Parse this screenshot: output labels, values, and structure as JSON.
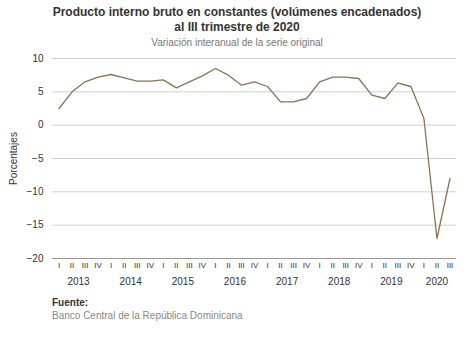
{
  "chart_data": {
    "type": "line",
    "title": "Producto interno bruto en constantes (volúmenes encadenados)\nal III trimestre de 2020",
    "subtitle": "Variación interanual de la serie original",
    "ylabel": "Porcentajes",
    "source_label": "Fuente:",
    "source": "Banco Central de la República Dominicana",
    "categories": [
      "I",
      "II",
      "III",
      "IV",
      "I",
      "II",
      "III",
      "IV",
      "I",
      "II",
      "III",
      "IV",
      "I",
      "II",
      "III",
      "IV",
      "I",
      "II",
      "III",
      "IV",
      "I",
      "II",
      "III",
      "IV",
      "I",
      "II",
      "III",
      "IV",
      "I",
      "II",
      "III"
    ],
    "values": [
      2.5,
      5.0,
      6.5,
      7.2,
      7.6,
      7.1,
      6.6,
      6.6,
      6.8,
      5.6,
      6.5,
      7.4,
      8.5,
      7.5,
      6.0,
      6.5,
      5.8,
      3.5,
      3.5,
      4.0,
      6.5,
      7.2,
      7.2,
      7.0,
      4.5,
      4.0,
      6.3,
      5.8,
      1.0,
      -17.0,
      -8.0
    ],
    "x_groups": [
      {
        "label": "2013",
        "first": 0,
        "last": 3
      },
      {
        "label": "2014",
        "first": 4,
        "last": 7
      },
      {
        "label": "2015",
        "first": 8,
        "last": 11
      },
      {
        "label": "2016",
        "first": 12,
        "last": 15
      },
      {
        "label": "2017",
        "first": 16,
        "last": 19
      },
      {
        "label": "2018",
        "first": 20,
        "last": 23
      },
      {
        "label": "2019",
        "first": 24,
        "last": 27
      },
      {
        "label": "2020",
        "first": 28,
        "last": 30
      }
    ],
    "color": "#8B7355",
    "ylim": [
      -20,
      10
    ],
    "yticks": [
      -20,
      -15,
      -10,
      -5,
      0,
      5,
      10
    ],
    "grid": true
  }
}
